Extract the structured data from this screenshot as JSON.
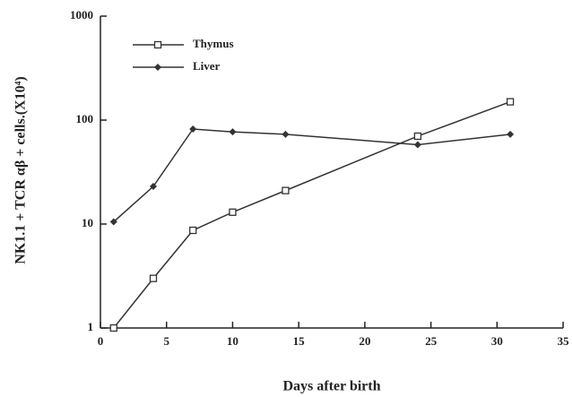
{
  "chart_data": {
    "type": "line",
    "x_label": "Days after birth",
    "y_label": "NK1.1 + TCR αβ + cells.(X10⁴)",
    "x": [
      1,
      4,
      7,
      10,
      14,
      24,
      31
    ],
    "series": [
      {
        "name": "Thymus",
        "color": "#333333",
        "marker": "square",
        "values": [
          1,
          3,
          8.7,
          13,
          21,
          70,
          150
        ]
      },
      {
        "name": "Liver",
        "color": "#333333",
        "marker": "diamond",
        "values": [
          10.5,
          23,
          82,
          77,
          73,
          58,
          73
        ]
      }
    ],
    "xlim": [
      0,
      35
    ],
    "xticks": [
      0,
      5,
      10,
      15,
      20,
      25,
      30,
      35
    ],
    "ylim": [
      1,
      1000
    ],
    "yticks": [
      1,
      10,
      100,
      1000
    ],
    "log_y": true,
    "grid": false,
    "legend": "upper left"
  }
}
